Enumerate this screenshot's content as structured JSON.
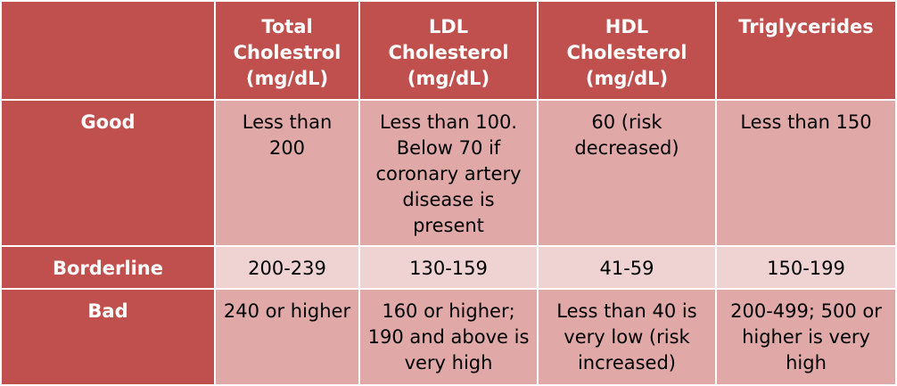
{
  "columns": {
    "corner": "",
    "total": "Total Cholestrol (mg/dL)",
    "ldl": "LDL Cholesterol (mg/dL)",
    "hdl": "HDL Cholesterol (mg/dL)",
    "tri": "Triglycerides"
  },
  "rows": [
    {
      "label": "Good",
      "total": "Less than 200",
      "ldl": "Less than 100. Below 70 if coronary artery disease is present",
      "hdl": "60 (risk decreased)",
      "tri": "Less than 150"
    },
    {
      "label": "Borderline",
      "total": "200-239",
      "ldl": "130-159",
      "hdl": "41-59",
      "tri": "150-199"
    },
    {
      "label": "Bad",
      "total": "240 or higher",
      "ldl": "160 or higher; 190 and above is very high",
      "hdl": "Less than 40 is very low (risk increased)",
      "tri": "200-499; 500 or higher is very high"
    }
  ],
  "colors": {
    "header": "#c0504d",
    "row_dark": "#e0a9a8",
    "row_light": "#efd3d2"
  }
}
